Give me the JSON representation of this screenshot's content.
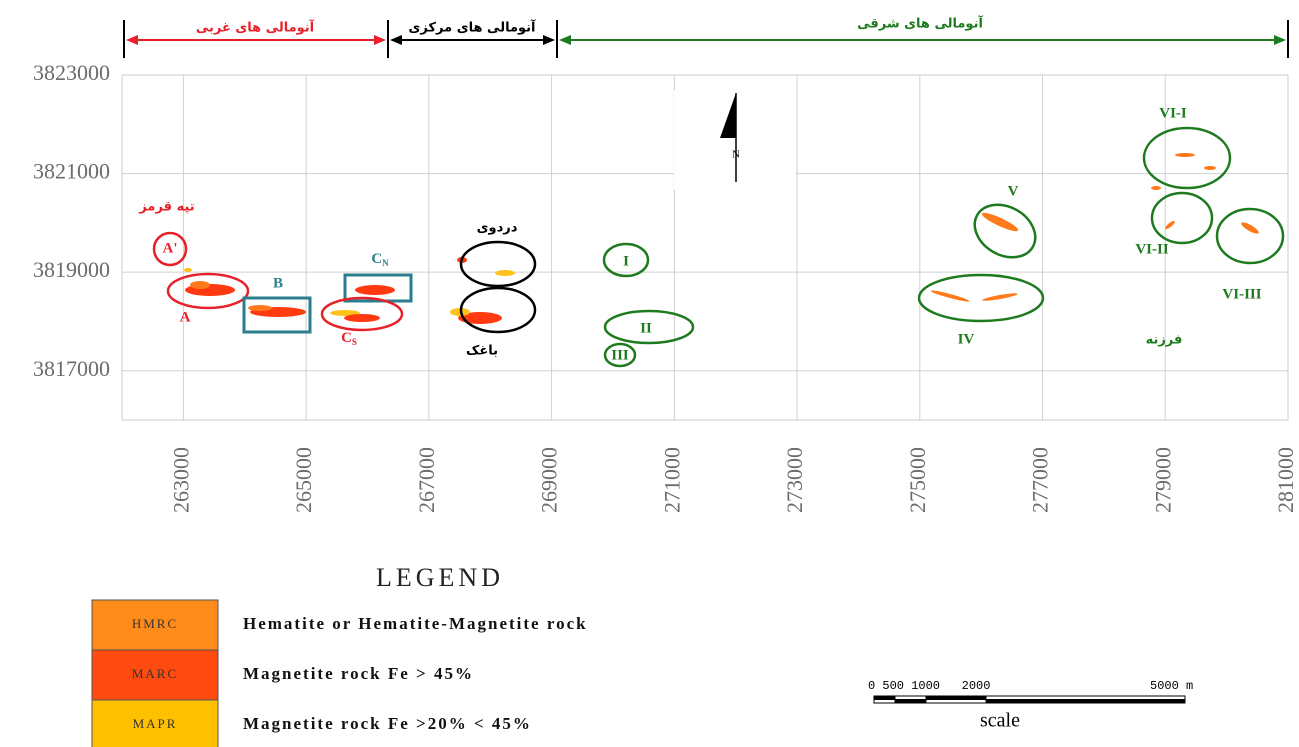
{
  "map": {
    "xlim": [
      262000,
      281000
    ],
    "ylim": [
      3816000,
      3823000
    ],
    "xticks": [
      263000,
      265000,
      267000,
      269000,
      271000,
      273000,
      275000,
      277000,
      279000,
      281000
    ],
    "yticks": [
      3817000,
      3819000,
      3821000,
      3823000
    ],
    "grid": true
  },
  "headers": {
    "west": "آنومالی های غربی",
    "central": "آنومالی های مرکزی",
    "east": "آنومالی های شرقی"
  },
  "labels": {
    "tappeh_ghermez": "تپه قرمز",
    "A_prime": "A'",
    "A": "A",
    "B": "B",
    "CN": {
      "text": "C",
      "sub": "N"
    },
    "CS": {
      "text": "C",
      "sub": "S"
    },
    "dardavi": "دردوی",
    "baghak": "باغک",
    "I": "I",
    "II": "II",
    "III": "III",
    "IV": "IV",
    "V": "V",
    "VI_I": "VI-I",
    "VI_II": "VI-II",
    "VI_III": "VI-III",
    "farzaneh": "فرزنه",
    "north": "N"
  },
  "legend": {
    "title": "LEGEND",
    "items": [
      {
        "code": "HMRC",
        "text": "Hematite or Hematite-Magnetite rock",
        "color": "#ff8c1a"
      },
      {
        "code": "MARC",
        "text": "Magnetite rock  Fe > 45%",
        "color": "#ff4b10"
      },
      {
        "code": "MAPR",
        "text": "Magnetite rock  Fe >20%  < 45%",
        "color": "#ffc000"
      }
    ]
  },
  "scale": {
    "labels": [
      "0 500 1000   2000",
      "5000 m"
    ],
    "title": "scale"
  }
}
